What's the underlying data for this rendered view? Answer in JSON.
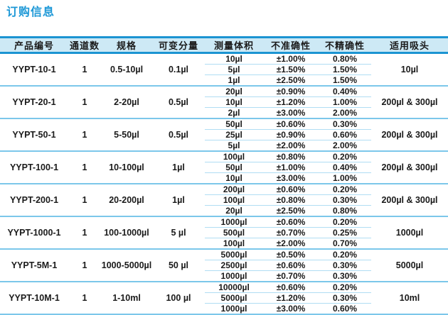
{
  "colors": {
    "accent": "#1b97d6",
    "header-bg": "#cde9f5",
    "header-border": "#1b94d2",
    "group-line": "#7cc7ea",
    "sub-line": "#b0ddf3",
    "text": "#1a1a1a"
  },
  "page": {
    "title": "订购信息"
  },
  "table": {
    "headers": {
      "product": "产品编号",
      "channels": "通道数",
      "spec": "规格",
      "increment": "可变分量",
      "volume": "测量体积",
      "inaccuracy": "不准确性",
      "imprecision": "不精确性",
      "tip": "适用吸头"
    },
    "groups": [
      {
        "product": "YYPT-10-1",
        "channels": "1",
        "spec": "0.5-10µl",
        "increment": "0.1µl",
        "tip": "10µl",
        "rows": [
          [
            "10µl",
            "±1.00%",
            "0.80%"
          ],
          [
            "5µl",
            "±1.50%",
            "1.50%"
          ],
          [
            "1µl",
            "±2.50%",
            "1.50%"
          ]
        ]
      },
      {
        "product": "YYPT-20-1",
        "channels": "1",
        "spec": "2-20µl",
        "increment": "0.5µl",
        "tip": "200µl & 300µl",
        "rows": [
          [
            "20µl",
            "±0.90%",
            "0.40%"
          ],
          [
            "10µl",
            "±1.20%",
            "1.00%"
          ],
          [
            "2µl",
            "±3.00%",
            "2.00%"
          ]
        ]
      },
      {
        "product": "YYPT-50-1",
        "channels": "1",
        "spec": "5-50µl",
        "increment": "0.5µl",
        "tip": "200µl & 300µl",
        "rows": [
          [
            "50µl",
            "±0.60%",
            "0.30%"
          ],
          [
            "25µl",
            "±0.90%",
            "0.60%"
          ],
          [
            "5µl",
            "±2.00%",
            "2.00%"
          ]
        ]
      },
      {
        "product": "YYPT-100-1",
        "channels": "1",
        "spec": "10-100µl",
        "increment": "1µl",
        "tip": "200µl & 300µl",
        "rows": [
          [
            "100µl",
            "±0.80%",
            "0.20%"
          ],
          [
            "50µl",
            "±1.00%",
            "0.40%"
          ],
          [
            "10µl",
            "±3.00%",
            "1.00%"
          ]
        ]
      },
      {
        "product": "YYPT-200-1",
        "channels": "1",
        "spec": "20-200µl",
        "increment": "1µl",
        "tip": "200µl & 300µl",
        "rows": [
          [
            "200µl",
            "±0.60%",
            "0.20%"
          ],
          [
            "100µl",
            "±0.80%",
            "0.30%"
          ],
          [
            "20µl",
            "±2.50%",
            "0.80%"
          ]
        ]
      },
      {
        "product": "YYPT-1000-1",
        "channels": "1",
        "spec": "100-1000µl",
        "increment": "5 µl",
        "tip": "1000µl",
        "rows": [
          [
            "1000µl",
            "±0.60%",
            "0.20%"
          ],
          [
            "500µl",
            "±0.70%",
            "0.25%"
          ],
          [
            "100µl",
            "±2.00%",
            "0.70%"
          ]
        ]
      },
      {
        "product": "YYPT-5M-1",
        "channels": "1",
        "spec": "1000-5000µl",
        "increment": "50 µl",
        "tip": "5000µl",
        "rows": [
          [
            "5000µl",
            "±0.50%",
            "0.20%"
          ],
          [
            "2500µl",
            "±0.60%",
            "0.30%"
          ],
          [
            "1000µl",
            "±0.70%",
            "0.30%"
          ]
        ]
      },
      {
        "product": "YYPT-10M-1",
        "channels": "1",
        "spec": "1-10ml",
        "increment": "100 µl",
        "tip": "10ml",
        "rows": [
          [
            "10000µl",
            "±0.60%",
            "0.20%"
          ],
          [
            "5000µl",
            "±1.20%",
            "0.30%"
          ],
          [
            "1000µl",
            "±3.00%",
            "0.60%"
          ]
        ]
      }
    ]
  }
}
